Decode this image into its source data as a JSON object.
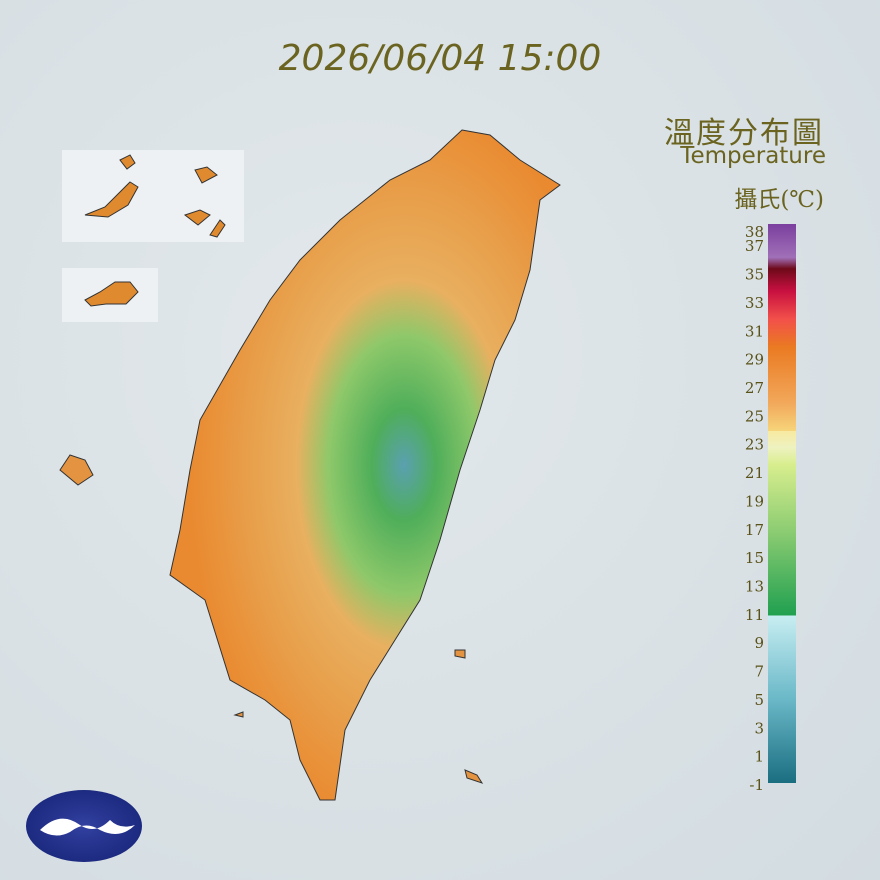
{
  "header": {
    "timestamp": "2026/06/04 15:00"
  },
  "legend": {
    "title": "溫度分布圖",
    "subtitle": "Temperature",
    "unit": "攝氏(℃)",
    "ticks": [
      38,
      37,
      35,
      33,
      31,
      29,
      27,
      25,
      23,
      21,
      19,
      17,
      15,
      13,
      11,
      9,
      7,
      5,
      3,
      1,
      -1
    ]
  }
}
